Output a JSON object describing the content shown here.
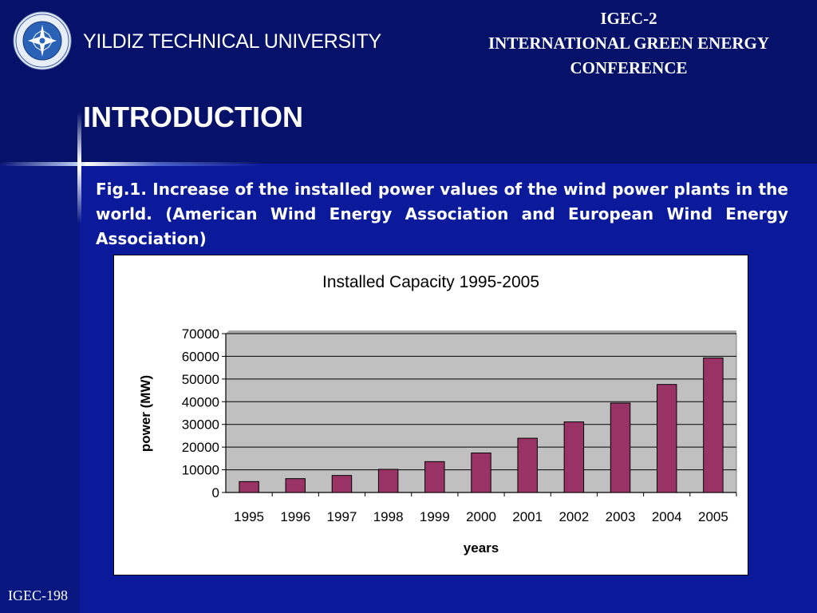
{
  "header": {
    "university": "YILDIZ TECHNICAL UNIVERSITY",
    "conference_lines": [
      "IGEC-2",
      "INTERNATIONAL GREEN ENERGY",
      "CONFERENCE"
    ]
  },
  "slide": {
    "title": "INTRODUCTION",
    "caption": "Fig.1. Increase of the installed power values of the wind power plants in the world. (American Wind Energy Association and European Wind Energy Association)"
  },
  "footer": {
    "label": "IGEC-198"
  },
  "colors": {
    "bar": "#993366",
    "plot_bg": "#c0c0c0"
  },
  "chart_data": {
    "type": "bar",
    "title": "Installed Capacity 1995-2005",
    "xlabel": "years",
    "ylabel": "power (MW)",
    "categories": [
      "1995",
      "1996",
      "1997",
      "1998",
      "1999",
      "2000",
      "2001",
      "2002",
      "2003",
      "2004",
      "2005"
    ],
    "values": [
      4800,
      6100,
      7500,
      10200,
      13600,
      17400,
      23900,
      31100,
      39400,
      47600,
      59300
    ],
    "ylim": [
      0,
      70000
    ],
    "yticks": [
      0,
      10000,
      20000,
      30000,
      40000,
      50000,
      60000,
      70000
    ],
    "grid": true
  }
}
